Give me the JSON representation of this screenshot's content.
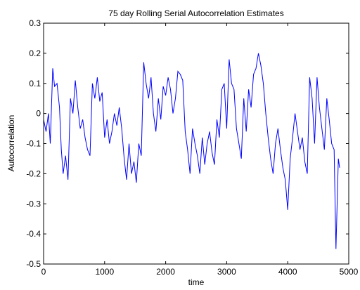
{
  "chart_data": {
    "type": "line",
    "title": "75 day Rolling Serial Autocorrelation Estimates",
    "xlabel": "time",
    "ylabel": "Autocorrelation",
    "xlim": [
      0,
      5000
    ],
    "ylim": [
      -0.5,
      0.3
    ],
    "xticks": [
      0,
      1000,
      2000,
      3000,
      4000,
      5000
    ],
    "xtick_labels": [
      "0",
      "1000",
      "2000",
      "3000",
      "4000",
      "5000"
    ],
    "yticks": [
      -0.5,
      -0.4,
      -0.3,
      -0.2,
      -0.1,
      0,
      0.1,
      0.2,
      0.3
    ],
    "ytick_labels": [
      "-0.5",
      "-0.4",
      "-0.3",
      "-0.2",
      "-0.1",
      "0",
      "0.1",
      "0.2",
      "0.3"
    ],
    "grid": false,
    "legend": false,
    "series": [
      {
        "color": "#0000ff",
        "x": [
          0,
          40,
          80,
          110,
          150,
          180,
          220,
          260,
          290,
          320,
          360,
          400,
          440,
          480,
          520,
          560,
          600,
          640,
          680,
          720,
          760,
          800,
          840,
          880,
          920,
          960,
          1000,
          1040,
          1080,
          1120,
          1160,
          1200,
          1240,
          1280,
          1320,
          1360,
          1400,
          1440,
          1480,
          1520,
          1560,
          1600,
          1640,
          1680,
          1720,
          1760,
          1800,
          1840,
          1880,
          1920,
          1960,
          2000,
          2040,
          2080,
          2120,
          2160,
          2200,
          2240,
          2280,
          2320,
          2360,
          2400,
          2440,
          2480,
          2520,
          2560,
          2600,
          2640,
          2680,
          2720,
          2760,
          2800,
          2840,
          2880,
          2920,
          2960,
          3000,
          3040,
          3080,
          3120,
          3160,
          3200,
          3240,
          3280,
          3320,
          3360,
          3400,
          3440,
          3480,
          3520,
          3560,
          3600,
          3640,
          3680,
          3720,
          3760,
          3800,
          3840,
          3880,
          3920,
          3960,
          4000,
          4040,
          4080,
          4120,
          4160,
          4200,
          4240,
          4280,
          4320,
          4360,
          4400,
          4440,
          4480,
          4520,
          4560,
          4600,
          4640,
          4680,
          4720,
          4760,
          4790,
          4810,
          4830,
          4850
        ],
        "y": [
          -0.02,
          -0.06,
          0.0,
          -0.1,
          0.15,
          0.09,
          0.1,
          0.02,
          -0.12,
          -0.2,
          -0.14,
          -0.22,
          0.05,
          0.0,
          0.11,
          0.02,
          -0.05,
          -0.02,
          -0.08,
          -0.12,
          -0.14,
          0.1,
          0.05,
          0.12,
          0.04,
          0.07,
          -0.08,
          -0.02,
          -0.1,
          -0.06,
          0.0,
          -0.04,
          0.02,
          -0.05,
          -0.15,
          -0.22,
          -0.1,
          -0.2,
          -0.16,
          -0.23,
          -0.1,
          -0.14,
          0.17,
          0.1,
          0.05,
          0.12,
          0.0,
          -0.06,
          0.05,
          -0.02,
          0.09,
          0.06,
          0.12,
          0.08,
          0.0,
          0.05,
          0.14,
          0.13,
          0.11,
          -0.06,
          -0.12,
          -0.2,
          -0.05,
          -0.1,
          -0.14,
          -0.2,
          -0.08,
          -0.17,
          -0.1,
          -0.06,
          -0.13,
          -0.17,
          -0.02,
          -0.08,
          0.08,
          0.1,
          -0.05,
          0.18,
          0.1,
          0.08,
          -0.05,
          -0.1,
          -0.15,
          0.05,
          -0.06,
          0.08,
          0.02,
          0.13,
          0.15,
          0.2,
          0.16,
          0.1,
          0.0,
          -0.08,
          -0.15,
          -0.2,
          -0.1,
          -0.05,
          -0.12,
          -0.18,
          -0.22,
          -0.32,
          -0.15,
          -0.08,
          0.0,
          -0.06,
          -0.12,
          -0.08,
          -0.16,
          -0.2,
          0.12,
          0.05,
          -0.1,
          0.12,
          0.02,
          -0.05,
          -0.12,
          0.05,
          -0.02,
          -0.1,
          -0.12,
          -0.45,
          -0.3,
          -0.15,
          -0.18
        ]
      }
    ]
  }
}
